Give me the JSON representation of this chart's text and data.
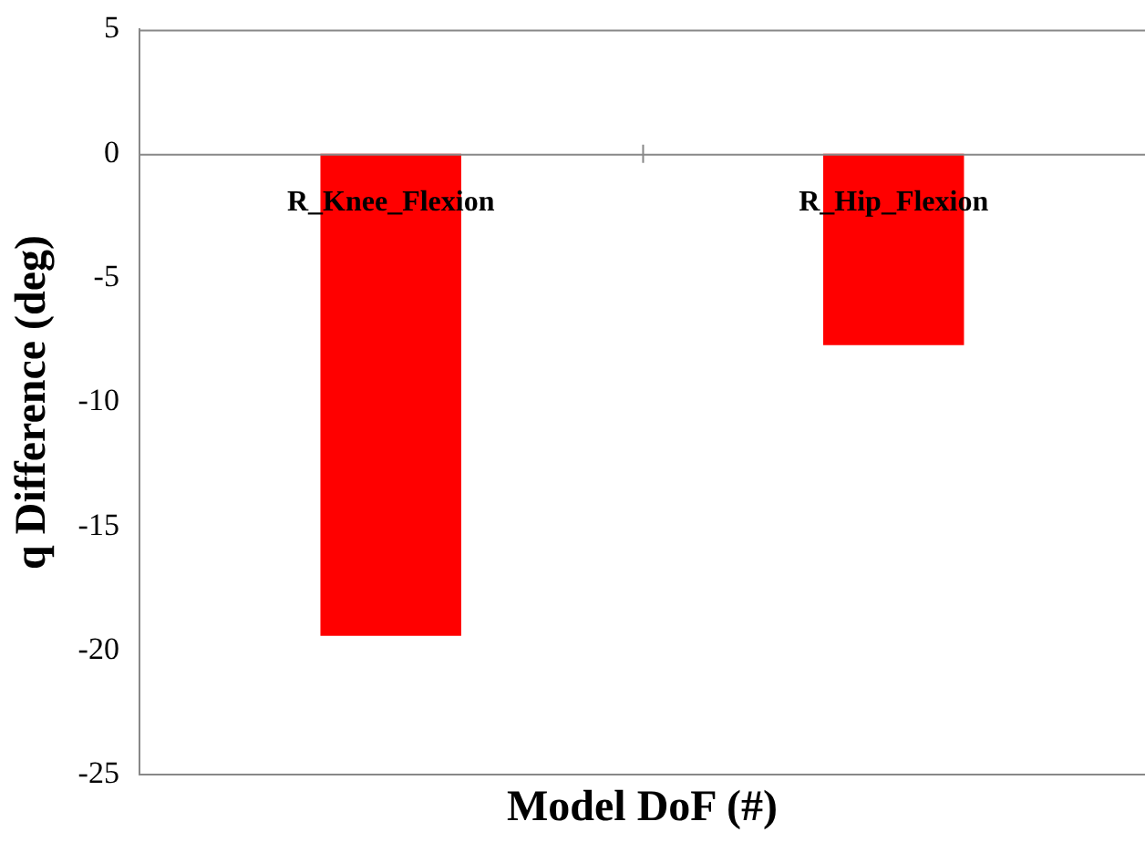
{
  "chart_data": {
    "type": "bar",
    "xlabel": "Model DoF (#)",
    "ylabel": "q Difference (deg)",
    "categories": [
      "R_Knee_Flexion",
      "R_Hip_Flexion"
    ],
    "values": [
      -19.4,
      -7.7
    ],
    "color": "#ff0000",
    "ylim": [
      -25,
      5
    ],
    "yticks": [
      -25,
      -20,
      -15,
      -10,
      -5,
      0,
      5
    ],
    "grid": false,
    "legend": false
  }
}
